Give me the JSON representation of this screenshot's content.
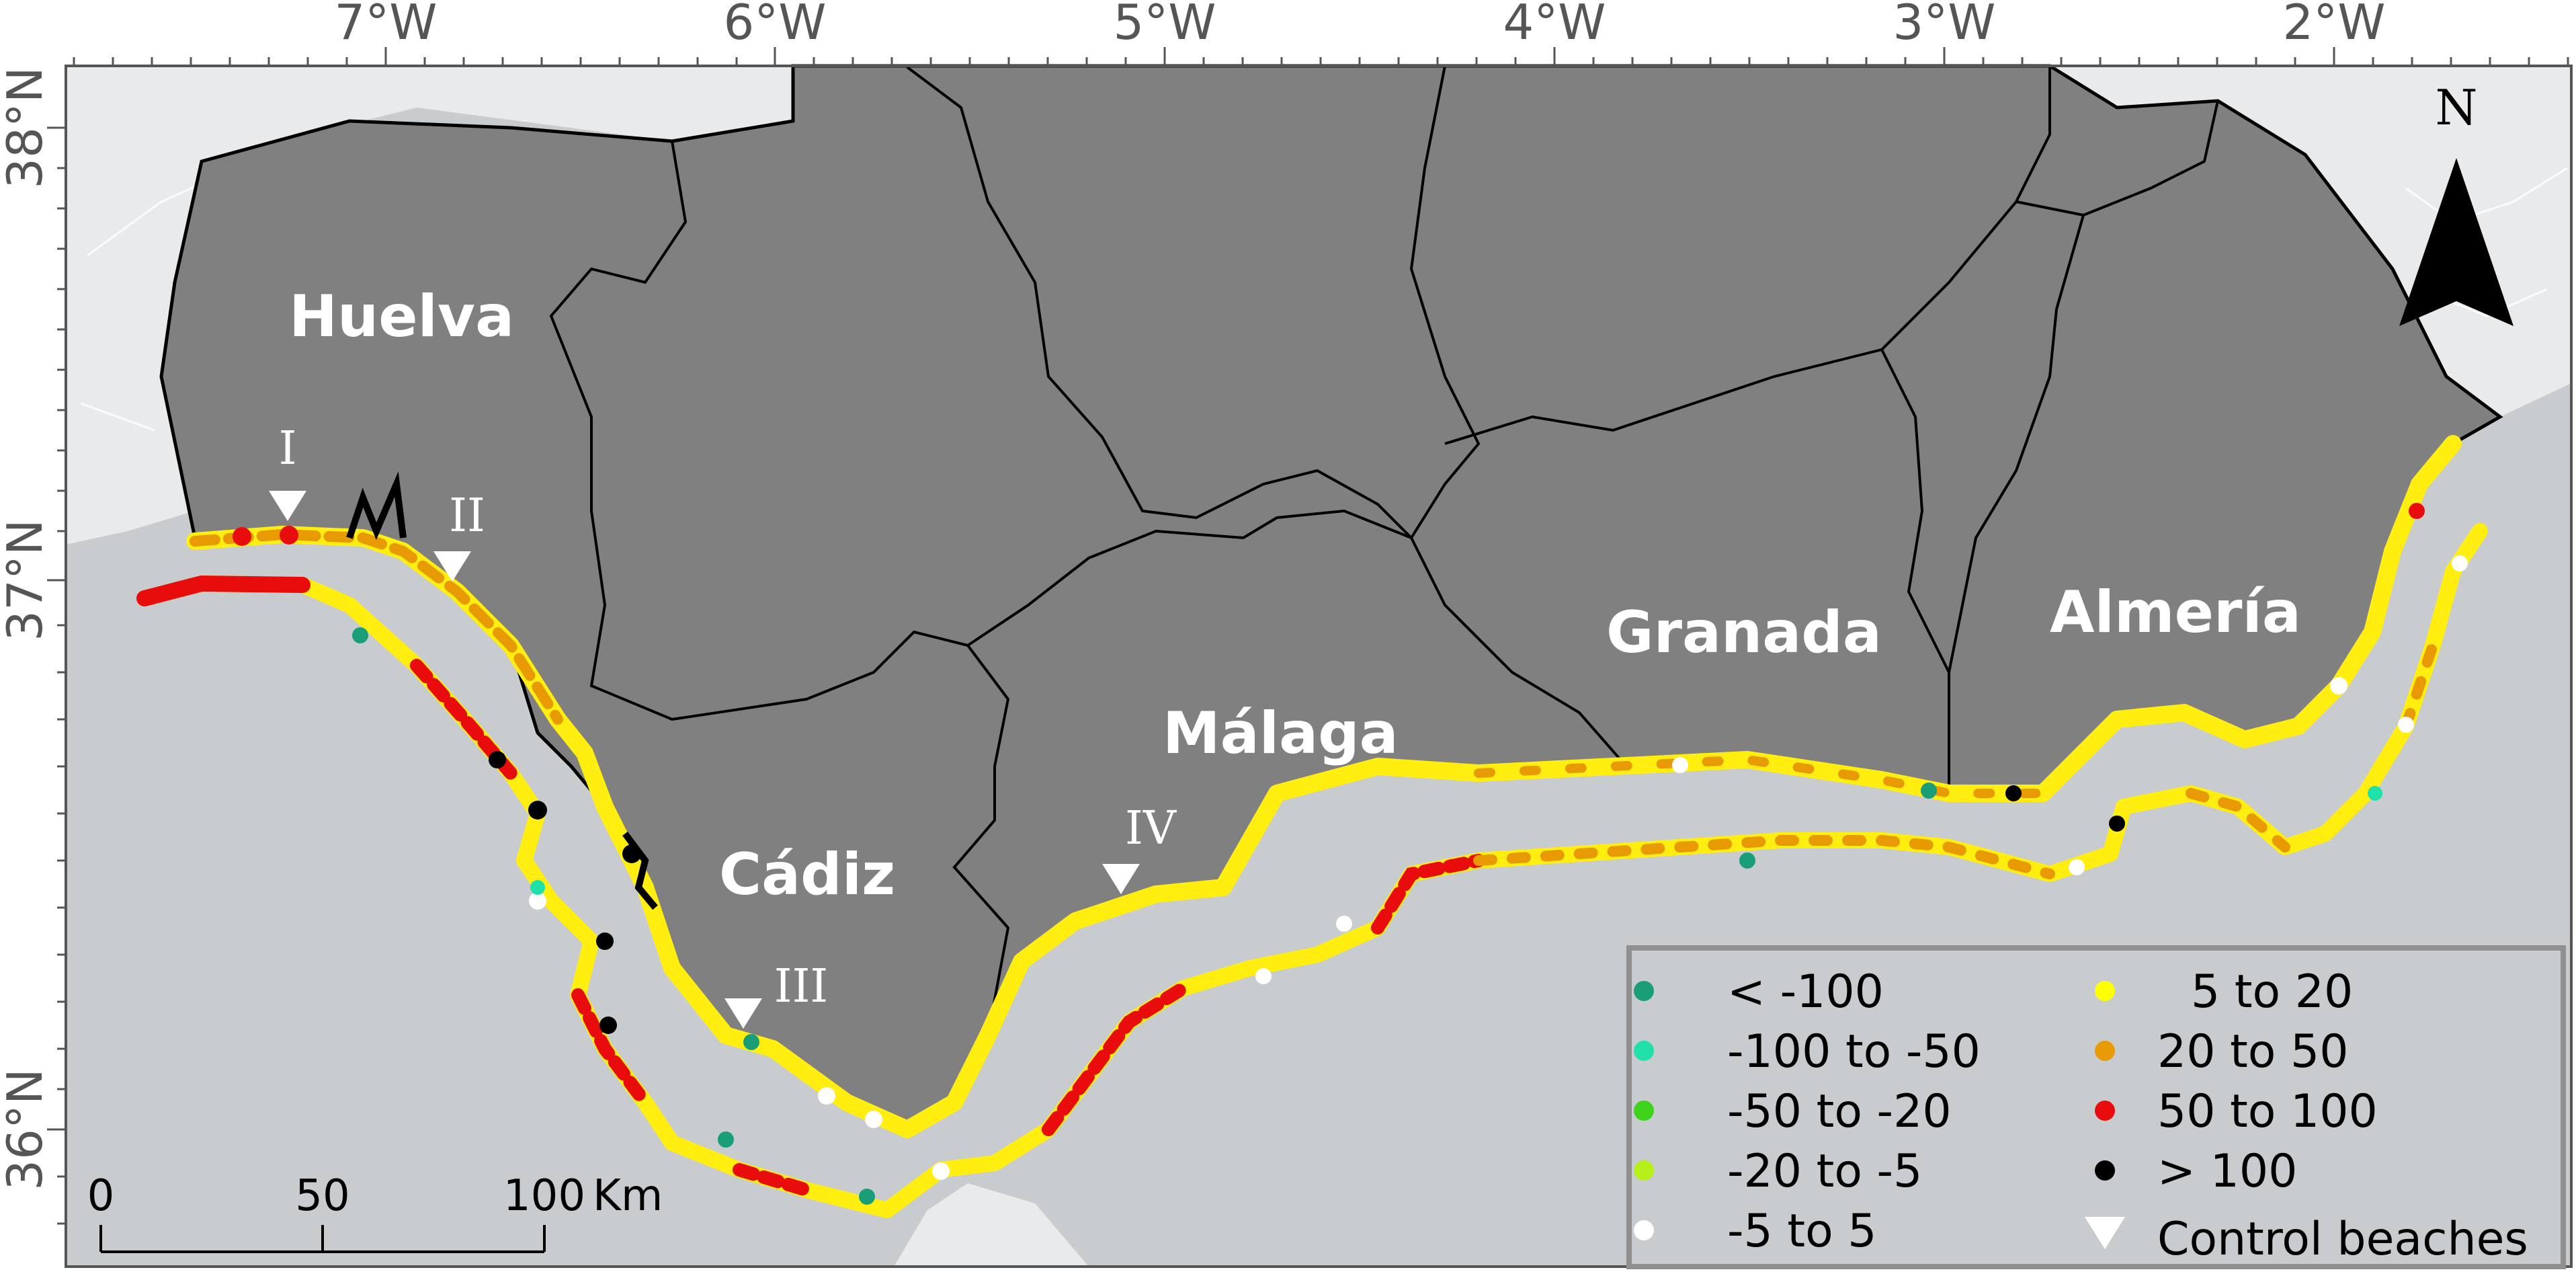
{
  "map": {
    "longitude_ticks": [
      "7°W",
      "6°W",
      "5°W",
      "4°W",
      "3°W",
      "2°W"
    ],
    "latitude_ticks": [
      "38°N",
      "37°N",
      "36°N"
    ],
    "provinces": [
      "Huelva",
      "Cádiz",
      "Málaga",
      "Granada",
      "Almería"
    ],
    "control_beaches": [
      "I",
      "II",
      "III",
      "IV"
    ],
    "north_arrow": "N",
    "scale_bar": {
      "ticks": [
        "0",
        "50",
        "100"
      ],
      "unit": "Km"
    },
    "legend": {
      "items": [
        {
          "label": "< -100",
          "color": "#1a9e77"
        },
        {
          "label": "-100 to -50",
          "color": "#1fe0a8"
        },
        {
          "label": "-50 to -20",
          "color": "#3fd21a"
        },
        {
          "label": "-20 to -5",
          "color": "#b5f01a"
        },
        {
          "label": "-5 to 5",
          "color": "#ffffff"
        },
        {
          "label": "5 to 20",
          "color": "#ffff00"
        },
        {
          "label": "20 to 50",
          "color": "#e89a05"
        },
        {
          "label": "50 to 100",
          "color": "#e80c0c"
        },
        {
          "label": "> 100",
          "color": "#000000"
        },
        {
          "label": "Control beaches",
          "color": "#ffffff"
        }
      ]
    },
    "colors": {
      "sea": "#c9cccf",
      "land_outside": "#e9eaeb",
      "andalusia": "#808080"
    }
  }
}
